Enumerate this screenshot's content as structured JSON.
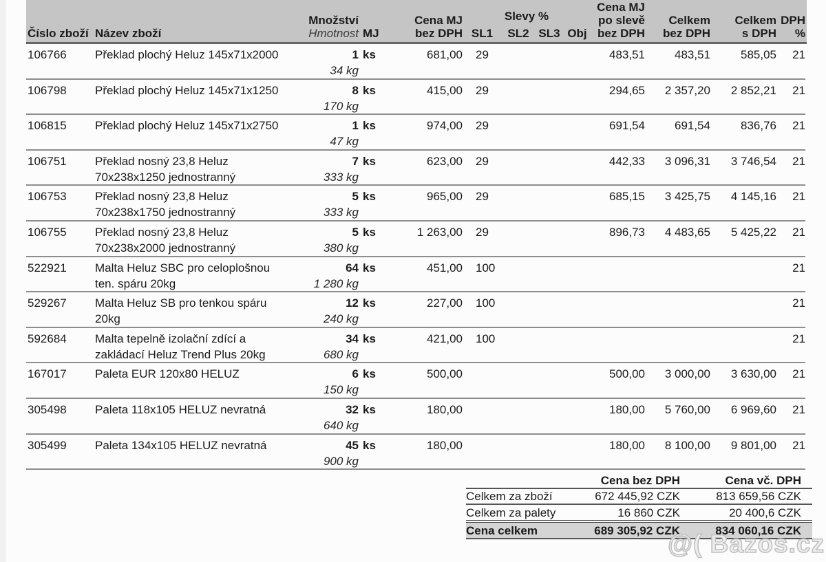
{
  "colors": {
    "header_bg": "#c5c5c5",
    "total_row_bg": "#d4d4d4",
    "row_rule": "#8d8d8d",
    "dark_rule": "#666666",
    "watermark": "#bfbfbf"
  },
  "table": {
    "header": {
      "item_no": "Číslo zboží",
      "name": "Název zboží",
      "qty_line1": "Množství",
      "qty_line2": "Hmotnost",
      "unit": "MJ",
      "price_line1": "Cena MJ",
      "price_line2": "bez DPH",
      "discounts_title": "Slevy %",
      "sl1": "SL1",
      "sl2": "SL2",
      "sl3": "SL3",
      "obj": "Obj",
      "disc_price_line1": "Cena MJ",
      "disc_price_line2": "po slevě",
      "disc_price_line3": "bez DPH",
      "total_net_line1": "Celkem",
      "total_net_line2": "bez DPH",
      "total_gross_line1": "Celkem",
      "total_gross_line2": "s DPH",
      "vat_line1": "DPH",
      "vat_line2": "%"
    },
    "rows": [
      {
        "id": "106766",
        "name": "Překlad plochý Heluz 145x71x2000",
        "qty": "1",
        "unit": "ks",
        "weight": "34 kg",
        "price": "681,00",
        "sl1": "29",
        "sl2": "",
        "sl3": "",
        "obj": "",
        "disc_price": "483,51",
        "total_net": "483,51",
        "total_gross": "585,05",
        "vat": "21"
      },
      {
        "id": "106798",
        "name": "Překlad plochý Heluz 145x71x1250",
        "qty": "8",
        "unit": "ks",
        "weight": "170 kg",
        "price": "415,00",
        "sl1": "29",
        "sl2": "",
        "sl3": "",
        "obj": "",
        "disc_price": "294,65",
        "total_net": "2 357,20",
        "total_gross": "2 852,21",
        "vat": "21"
      },
      {
        "id": "106815",
        "name": "Překlad plochý Heluz 145x71x2750",
        "qty": "1",
        "unit": "ks",
        "weight": "47 kg",
        "price": "974,00",
        "sl1": "29",
        "sl2": "",
        "sl3": "",
        "obj": "",
        "disc_price": "691,54",
        "total_net": "691,54",
        "total_gross": "836,76",
        "vat": "21"
      },
      {
        "id": "106751",
        "name": "Překlad nosný 23,8 Heluz\n70x238x1250 jednostranný",
        "qty": "7",
        "unit": "ks",
        "weight": "333 kg",
        "price": "623,00",
        "sl1": "29",
        "sl2": "",
        "sl3": "",
        "obj": "",
        "disc_price": "442,33",
        "total_net": "3 096,31",
        "total_gross": "3 746,54",
        "vat": "21"
      },
      {
        "id": "106753",
        "name": "Překlad nosný 23,8 Heluz\n70x238x1750 jednostranný",
        "qty": "5",
        "unit": "ks",
        "weight": "333 kg",
        "price": "965,00",
        "sl1": "29",
        "sl2": "",
        "sl3": "",
        "obj": "",
        "disc_price": "685,15",
        "total_net": "3 425,75",
        "total_gross": "4 145,16",
        "vat": "21"
      },
      {
        "id": "106755",
        "name": "Překlad nosný 23,8 Heluz\n70x238x2000 jednostranný",
        "qty": "5",
        "unit": "ks",
        "weight": "380 kg",
        "price": "1 263,00",
        "sl1": "29",
        "sl2": "",
        "sl3": "",
        "obj": "",
        "disc_price": "896,73",
        "total_net": "4 483,65",
        "total_gross": "5 425,22",
        "vat": "21"
      },
      {
        "id": "522921",
        "name": "Malta Heluz SBC pro celoplošnou\nten. spáru 20kg",
        "qty": "64",
        "unit": "ks",
        "weight": "1 280 kg",
        "price": "451,00",
        "sl1": "100",
        "sl2": "",
        "sl3": "",
        "obj": "",
        "disc_price": "",
        "total_net": "",
        "total_gross": "",
        "vat": "21"
      },
      {
        "id": "529267",
        "name": "Malta Heluz SB pro tenkou spáru\n20kg",
        "qty": "12",
        "unit": "ks",
        "weight": "240 kg",
        "price": "227,00",
        "sl1": "100",
        "sl2": "",
        "sl3": "",
        "obj": "",
        "disc_price": "",
        "total_net": "",
        "total_gross": "",
        "vat": "21"
      },
      {
        "id": "592684",
        "name": "Malta tepelně izolační zdící a\nzakládací Heluz Trend Plus 20kg",
        "qty": "34",
        "unit": "ks",
        "weight": "680 kg",
        "price": "421,00",
        "sl1": "100",
        "sl2": "",
        "sl3": "",
        "obj": "",
        "disc_price": "",
        "total_net": "",
        "total_gross": "",
        "vat": "21"
      },
      {
        "id": "167017",
        "name": "Paleta EUR 120x80 HELUZ",
        "qty": "6",
        "unit": "ks",
        "weight": "150 kg",
        "price": "500,00",
        "sl1": "",
        "sl2": "",
        "sl3": "",
        "obj": "",
        "disc_price": "500,00",
        "total_net": "3 000,00",
        "total_gross": "3 630,00",
        "vat": "21"
      },
      {
        "id": "305498",
        "name": "Paleta 118x105 HELUZ nevratná",
        "qty": "32",
        "unit": "ks",
        "weight": "640 kg",
        "price": "180,00",
        "sl1": "",
        "sl2": "",
        "sl3": "",
        "obj": "",
        "disc_price": "180,00",
        "total_net": "5 760,00",
        "total_gross": "6 969,60",
        "vat": "21"
      },
      {
        "id": "305499",
        "name": "Paleta 134x105 HELUZ nevratná",
        "qty": "45",
        "unit": "ks",
        "weight": "900 kg",
        "price": "180,00",
        "sl1": "",
        "sl2": "",
        "sl3": "",
        "obj": "",
        "disc_price": "180,00",
        "total_net": "8 100,00",
        "total_gross": "9 801,00",
        "vat": "21"
      }
    ]
  },
  "summary": {
    "col_net": "Cena bez DPH",
    "col_gross": "Cena vč. DPH",
    "rows": [
      {
        "label": "Celkem za zboží",
        "net": "672 445,92 CZK",
        "gross": "813 659,56 CZK",
        "strong": false
      },
      {
        "label": "Celkem za palety",
        "net": "16 860 CZK",
        "gross": "20 400,6 CZK",
        "strong": false
      },
      {
        "label": "Cena celkem",
        "net": "689 305,92 CZK",
        "gross": "834 060,16 CZK",
        "strong": true
      }
    ]
  },
  "watermark": {
    "text": "@( Bazos.cz"
  }
}
